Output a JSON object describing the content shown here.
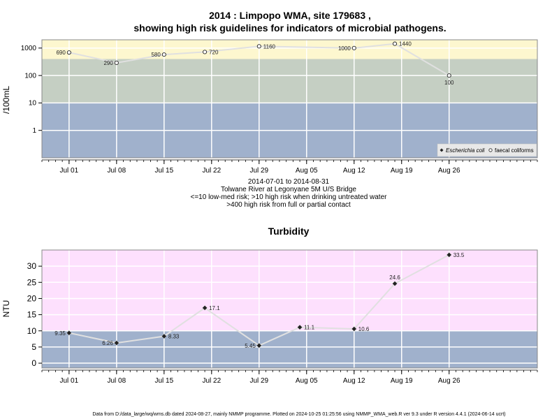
{
  "colors": {
    "band_high": "#fdf7cf",
    "band_mid": "#c5cfc3",
    "band_low": "#a0b1cc",
    "turb_high": "#fde0fd",
    "grid": "#ffffff",
    "series_line": "#e0e0e0",
    "marker_dark": "#222222"
  },
  "chart_data": [
    {
      "type": "line",
      "title_line1": "2014 : Limpopo WMA, site 179683 ,",
      "title_line2": "showing high risk guidelines for indicators of microbial pathogens.",
      "ylabel": "/100mL",
      "yscale": "log",
      "ylim": [
        0.1,
        2000
      ],
      "ytick_labels": [
        "1",
        "10",
        "100",
        "1000"
      ],
      "ytick_values": [
        1,
        10,
        100,
        1000
      ],
      "xlim": [
        "2014-06-27",
        "2014-09-08"
      ],
      "xtick_labels": [
        "Jul 01",
        "Jul 08",
        "Jul 15",
        "Jul 22",
        "Jul 29",
        "Aug 05",
        "Aug 12",
        "Aug 19",
        "Aug 26"
      ],
      "xtick_dates": [
        "2014-07-01",
        "2014-07-08",
        "2014-07-15",
        "2014-07-22",
        "2014-07-29",
        "2014-08-05",
        "2014-08-12",
        "2014-08-19",
        "2014-08-26"
      ],
      "bands": [
        {
          "from": 0.1,
          "to": 10,
          "color_key": "band_low"
        },
        {
          "from": 10,
          "to": 400,
          "color_key": "band_mid"
        },
        {
          "from": 400,
          "to": 2000,
          "color_key": "band_high"
        }
      ],
      "series": [
        {
          "name": "faecal coliforms",
          "marker": "open-circle",
          "points": [
            {
              "x": "2014-07-01",
              "y": 690,
              "label": "690",
              "label_side": "left"
            },
            {
              "x": "2014-07-08",
              "y": 290,
              "label": "290",
              "label_side": "left"
            },
            {
              "x": "2014-07-15",
              "y": 580,
              "label": "580",
              "label_side": "left"
            },
            {
              "x": "2014-07-21",
              "y": 720,
              "label": "720",
              "label_side": "right"
            },
            {
              "x": "2014-07-29",
              "y": 1160,
              "label": "1160",
              "label_side": "right"
            },
            {
              "x": "2014-08-12",
              "y": 1000,
              "label": "1000",
              "label_side": "left"
            },
            {
              "x": "2014-08-18",
              "y": 1440,
              "label": "1440",
              "label_side": "right"
            },
            {
              "x": "2014-08-26",
              "y": 100,
              "label": "100",
              "label_side": "below"
            }
          ]
        }
      ],
      "legend": {
        "position": "bottom-right",
        "entries": [
          {
            "label": "Escherichia coli",
            "marker": "filled-diamond",
            "italic": true
          },
          {
            "label": "faecal coliforms",
            "marker": "open-circle",
            "italic": false
          }
        ]
      },
      "caption_lines": [
        "2014-07-01 to 2014-08-31",
        "Tolwane River at Legonyane 5M U/S Bridge",
        "<=10 low-med risk; >10 high risk when drinking untreated water",
        ">400 high risk from full or partial contact"
      ]
    },
    {
      "type": "line",
      "title": "Turbidity",
      "ylabel": "NTU",
      "ylim": [
        -1.5,
        35
      ],
      "ytick_labels": [
        "0",
        "5",
        "10",
        "15",
        "20",
        "25",
        "30"
      ],
      "ytick_values": [
        0,
        5,
        10,
        15,
        20,
        25,
        30
      ],
      "xlim": [
        "2014-06-27",
        "2014-09-08"
      ],
      "xtick_labels": [
        "Jul 01",
        "Jul 08",
        "Jul 15",
        "Jul 22",
        "Jul 29",
        "Aug 05",
        "Aug 12",
        "Aug 19",
        "Aug 26"
      ],
      "xtick_dates": [
        "2014-07-01",
        "2014-07-08",
        "2014-07-15",
        "2014-07-22",
        "2014-07-29",
        "2014-08-05",
        "2014-08-12",
        "2014-08-19",
        "2014-08-26"
      ],
      "bands": [
        {
          "from": -1.5,
          "to": 10,
          "color_key": "band_low"
        },
        {
          "from": 10,
          "to": 35,
          "color_key": "turb_high"
        }
      ],
      "series": [
        {
          "name": "",
          "marker": "filled-diamond",
          "points": [
            {
              "x": "2014-07-01",
              "y": 9.35,
              "label": "9.35",
              "label_side": "left"
            },
            {
              "x": "2014-07-08",
              "y": 6.26,
              "label": "6.26",
              "label_side": "left"
            },
            {
              "x": "2014-07-15",
              "y": 8.33,
              "label": "8.33",
              "label_side": "right"
            },
            {
              "x": "2014-07-21",
              "y": 17.1,
              "label": "17.1",
              "label_side": "right"
            },
            {
              "x": "2014-07-29",
              "y": 5.45,
              "label": "5.45",
              "label_side": "left"
            },
            {
              "x": "2014-08-04",
              "y": 11.1,
              "label": "11.1",
              "label_side": "right"
            },
            {
              "x": "2014-08-12",
              "y": 10.6,
              "label": "10.6",
              "label_side": "right"
            },
            {
              "x": "2014-08-18",
              "y": 24.6,
              "label": "24.6",
              "label_side": "above"
            },
            {
              "x": "2014-08-26",
              "y": 33.5,
              "label": "33.5",
              "label_side": "right"
            }
          ]
        }
      ]
    }
  ],
  "footer": "Data from D:/data_large/wq/wms.db dated 2024-08-27, mainly NMMP programme. Plotted on 2024-10-25 01:25:56 using NMMP_WMA_web.R ver 9.3 under R version 4.4.1 (2024-06-14 ucrt)"
}
